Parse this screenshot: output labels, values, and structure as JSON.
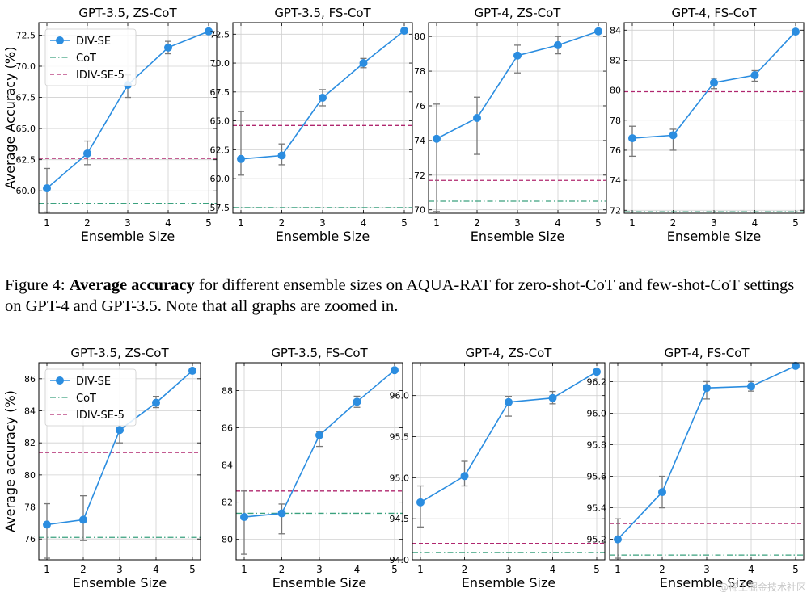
{
  "colors": {
    "divse": "#2b8de0",
    "cot": "#3aa17e",
    "idivse": "#b0276f",
    "grid": "#d0d0d0",
    "errorbar": "#777777"
  },
  "figure4": {
    "caption_prefix": "Figure 4:",
    "caption_bold": "Average accuracy",
    "caption_rest": "for different ensemble sizes on AQUA-RAT for zero-shot-CoT and few-shot-CoT settings on GPT-4 and GPT-3.5. Note that all graphs are zoomed in."
  },
  "watermark": "@稀土掘金技术社区",
  "chart_data": [
    {
      "type": "line",
      "title": "GPT-3.5, ZS-CoT",
      "xlabel": "Ensemble Size",
      "ylabel": "Average Accuracy (%)",
      "x": [
        1,
        2,
        3,
        4,
        5
      ],
      "xticks": [
        "1",
        "2",
        "3",
        "4",
        "5"
      ],
      "ylim": [
        58.2,
        73.5
      ],
      "yticks": [
        60.0,
        62.5,
        65.0,
        67.5,
        70.0,
        72.5
      ],
      "ytick_labels": [
        "60.0",
        "62.5",
        "65.0",
        "67.5",
        "70.0",
        "72.5"
      ],
      "series": [
        {
          "name": "DIV-SE",
          "values": [
            60.2,
            63.0,
            68.5,
            71.5,
            72.8
          ],
          "err_low": [
            1.9,
            0.9,
            1.0,
            0.5,
            0
          ],
          "err_high": [
            1.6,
            1.0,
            0.8,
            0.5,
            0
          ]
        }
      ],
      "hlines": [
        {
          "name": "CoT",
          "value": 59.0,
          "style": "dashdot"
        },
        {
          "name": "IDIV-SE-5",
          "value": 62.6,
          "style": "dashed"
        }
      ],
      "legend": [
        "DIV-SE",
        "CoT",
        "IDIV-SE-5"
      ]
    },
    {
      "type": "line",
      "title": "GPT-3.5, FS-CoT",
      "xlabel": "Ensemble Size",
      "ylabel": "",
      "x": [
        1,
        2,
        3,
        4,
        5
      ],
      "xticks": [
        "1",
        "2",
        "3",
        "4",
        "5"
      ],
      "ylim": [
        57.0,
        73.5
      ],
      "yticks": [
        57.5,
        60.0,
        62.5,
        65.0,
        67.5,
        70.0,
        72.5
      ],
      "ytick_labels": [
        "57.5",
        "60.0",
        "62.5",
        "65.0",
        "67.5",
        "70.0",
        "72.5"
      ],
      "series": [
        {
          "name": "DIV-SE",
          "values": [
            61.7,
            62.0,
            67.0,
            70.0,
            72.8
          ],
          "err_low": [
            1.4,
            0.8,
            0.7,
            0.4,
            0
          ],
          "err_high": [
            4.1,
            1.0,
            0.7,
            0.4,
            0
          ]
        }
      ],
      "hlines": [
        {
          "name": "CoT",
          "value": 57.5,
          "style": "dashdot"
        },
        {
          "name": "IDIV-SE-5",
          "value": 64.6,
          "style": "dashed"
        }
      ]
    },
    {
      "type": "line",
      "title": "GPT-4, ZS-CoT",
      "xlabel": "Ensemble Size",
      "ylabel": "",
      "x": [
        1,
        2,
        3,
        4,
        5
      ],
      "xticks": [
        "1",
        "2",
        "3",
        "4",
        "5"
      ],
      "ylim": [
        69.8,
        80.8
      ],
      "yticks": [
        70,
        72,
        74,
        76,
        78,
        80
      ],
      "ytick_labels": [
        "70",
        "72",
        "74",
        "76",
        "78",
        "80"
      ],
      "series": [
        {
          "name": "DIV-SE",
          "values": [
            74.1,
            75.3,
            78.9,
            79.5,
            80.3
          ],
          "err_low": [
            4.2,
            2.1,
            1.0,
            0.5,
            0
          ],
          "err_high": [
            2.0,
            1.2,
            0.6,
            0.5,
            0
          ]
        }
      ],
      "hlines": [
        {
          "name": "CoT",
          "value": 70.5,
          "style": "dashdot"
        },
        {
          "name": "IDIV-SE-5",
          "value": 71.7,
          "style": "dashed"
        }
      ]
    },
    {
      "type": "line",
      "title": "GPT-4, FS-CoT",
      "xlabel": "Ensemble Size",
      "ylabel": "",
      "x": [
        1,
        2,
        3,
        4,
        5
      ],
      "xticks": [
        "1",
        "2",
        "3",
        "4",
        "5"
      ],
      "ylim": [
        71.8,
        84.5
      ],
      "yticks": [
        72,
        74,
        76,
        78,
        80,
        82,
        84
      ],
      "ytick_labels": [
        "72",
        "74",
        "76",
        "78",
        "80",
        "82",
        "84"
      ],
      "series": [
        {
          "name": "DIV-SE",
          "values": [
            76.8,
            77.0,
            80.5,
            81.0,
            83.9
          ],
          "err_low": [
            1.2,
            1.0,
            0.4,
            0.4,
            0
          ],
          "err_high": [
            0.8,
            0.4,
            0.3,
            0.3,
            0
          ]
        }
      ],
      "hlines": [
        {
          "name": "CoT",
          "value": 71.9,
          "style": "dashdot"
        },
        {
          "name": "IDIV-SE-5",
          "value": 79.9,
          "style": "dashed"
        }
      ]
    },
    {
      "type": "line",
      "title": "GPT-3.5, ZS-CoT",
      "xlabel": "Ensemble Size",
      "ylabel": "Average accuracy (%)",
      "x": [
        1,
        2,
        3,
        4,
        5
      ],
      "xticks": [
        "1",
        "2",
        "3",
        "4",
        "5"
      ],
      "ylim": [
        74.7,
        87.0
      ],
      "yticks": [
        76,
        78,
        80,
        82,
        84,
        86
      ],
      "ytick_labels": [
        "76",
        "78",
        "80",
        "82",
        "84",
        "86"
      ],
      "series": [
        {
          "name": "DIV-SE",
          "values": [
            76.9,
            77.2,
            82.8,
            84.5,
            86.5
          ],
          "err_low": [
            2.1,
            1.3,
            0.8,
            0.3,
            0
          ],
          "err_high": [
            1.3,
            1.5,
            0.9,
            0.4,
            0
          ]
        }
      ],
      "hlines": [
        {
          "name": "CoT",
          "value": 76.1,
          "style": "dashdot"
        },
        {
          "name": "IDIV-SE-5",
          "value": 81.4,
          "style": "dashed"
        }
      ],
      "legend": [
        "DIV-SE",
        "CoT",
        "IDIV-SE-5"
      ]
    },
    {
      "type": "line",
      "title": "GPT-3.5, FS-CoT",
      "xlabel": "Ensemble Size",
      "ylabel": "",
      "x": [
        1,
        2,
        3,
        4,
        5
      ],
      "xticks": [
        "1",
        "2",
        "3",
        "4",
        "5"
      ],
      "ylim": [
        78.9,
        89.5
      ],
      "yticks": [
        80,
        82,
        84,
        86,
        88
      ],
      "ytick_labels": [
        "80",
        "82",
        "84",
        "86",
        "88"
      ],
      "series": [
        {
          "name": "DIV-SE",
          "values": [
            81.2,
            81.4,
            85.6,
            87.4,
            89.1
          ],
          "err_low": [
            2.0,
            1.1,
            0.6,
            0.3,
            0
          ],
          "err_high": [
            1.4,
            0.5,
            0.2,
            0.3,
            0
          ]
        }
      ],
      "hlines": [
        {
          "name": "CoT",
          "value": 81.4,
          "style": "dashdot"
        },
        {
          "name": "IDIV-SE-5",
          "value": 82.6,
          "style": "dashed"
        }
      ]
    },
    {
      "type": "line",
      "title": "GPT-4, ZS-CoT",
      "xlabel": "Ensemble Size",
      "ylabel": "",
      "x": [
        1,
        2,
        3,
        4,
        5
      ],
      "xticks": [
        "1",
        "2",
        "3",
        "4",
        "5"
      ],
      "ylim": [
        94.0,
        96.4
      ],
      "yticks": [
        94.0,
        94.5,
        95.0,
        95.5,
        96.0
      ],
      "ytick_labels": [
        "94.0",
        "94.5",
        "95.0",
        "95.5",
        "96.0"
      ],
      "series": [
        {
          "name": "DIV-SE",
          "values": [
            94.7,
            95.02,
            95.92,
            95.97,
            96.29
          ],
          "err_low": [
            0.3,
            0.12,
            0.17,
            0.07,
            0
          ],
          "err_high": [
            0.2,
            0.18,
            0.07,
            0.08,
            0
          ]
        }
      ],
      "hlines": [
        {
          "name": "CoT",
          "value": 94.09,
          "style": "dashdot"
        },
        {
          "name": "IDIV-SE-5",
          "value": 94.2,
          "style": "dashed"
        }
      ]
    },
    {
      "type": "line",
      "title": "GPT-4, FS-CoT",
      "xlabel": "Ensemble Size",
      "ylabel": "",
      "x": [
        1,
        2,
        3,
        4,
        5
      ],
      "xticks": [
        "1",
        "2",
        "3",
        "4",
        "5"
      ],
      "ylim": [
        95.07,
        96.32
      ],
      "yticks": [
        95.2,
        95.4,
        95.6,
        95.8,
        96.0,
        96.2
      ],
      "ytick_labels": [
        "95.2",
        "95.4",
        "95.6",
        "95.8",
        "96.0",
        "96.2"
      ],
      "series": [
        {
          "name": "DIV-SE",
          "values": [
            95.2,
            95.5,
            96.16,
            96.17,
            96.3
          ],
          "err_low": [
            0.12,
            0.1,
            0.07,
            0.03,
            0
          ],
          "err_high": [
            0.13,
            0.1,
            0.04,
            0.03,
            0
          ]
        }
      ],
      "hlines": [
        {
          "name": "CoT",
          "value": 95.1,
          "style": "dashdot"
        },
        {
          "name": "IDIV-SE-5",
          "value": 95.3,
          "style": "dashed"
        }
      ]
    }
  ]
}
